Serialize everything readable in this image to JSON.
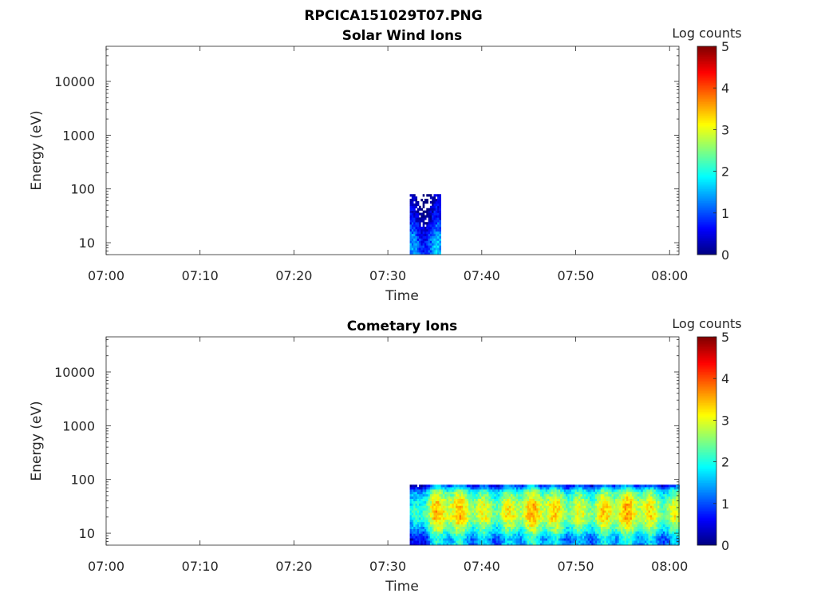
{
  "figure": {
    "title": "RPCICA151029T07.PNG"
  },
  "chart_data": [
    {
      "type": "heatmap",
      "title": "Solar Wind Ions",
      "xlabel": "Time",
      "ylabel": "Energy (eV)",
      "x_ticks": [
        "07:00",
        "07:10",
        "07:20",
        "07:30",
        "07:40",
        "07:50",
        "08:00"
      ],
      "x_range": [
        "07:00",
        "08:01"
      ],
      "y_scale": "log",
      "y_range": [
        6,
        45000
      ],
      "y_ticks": [
        10,
        100,
        1000,
        10000
      ],
      "y_tick_labels": [
        "10",
        "100",
        "1000",
        "10000"
      ],
      "colorbar": {
        "label": "Log counts",
        "range": [
          0,
          5
        ],
        "ticks": [
          "0",
          "1",
          "2",
          "3",
          "4",
          "5"
        ],
        "colormap": "jet"
      },
      "data_extent": {
        "time": [
          "07:32:20",
          "07:35:30"
        ],
        "energy_eV": [
          6,
          80
        ]
      },
      "profile": [
        {
          "energy_eV": 8,
          "log_counts": 1.3
        },
        {
          "energy_eV": 15,
          "log_counts": 1.1
        },
        {
          "energy_eV": 25,
          "log_counts": 0.6
        },
        {
          "energy_eV": 50,
          "log_counts": 0.2
        },
        {
          "energy_eV": 80,
          "log_counts": 0.1
        }
      ]
    },
    {
      "type": "heatmap",
      "title": "Cometary Ions",
      "xlabel": "Time",
      "ylabel": "Energy (eV)",
      "x_ticks": [
        "07:00",
        "07:10",
        "07:20",
        "07:30",
        "07:40",
        "07:50",
        "08:00"
      ],
      "x_range": [
        "07:00",
        "08:01"
      ],
      "y_scale": "log",
      "y_range": [
        6,
        45000
      ],
      "y_ticks": [
        10,
        100,
        1000,
        10000
      ],
      "y_tick_labels": [
        "10",
        "100",
        "1000",
        "10000"
      ],
      "colorbar": {
        "label": "Log counts",
        "range": [
          0,
          5
        ],
        "ticks": [
          "0",
          "1",
          "2",
          "3",
          "4",
          "5"
        ],
        "colormap": "jet"
      },
      "data_extent": {
        "time": [
          "07:32:20",
          "08:01:00"
        ],
        "energy_eV": [
          6,
          80
        ]
      },
      "profile": [
        {
          "energy_eV": 8,
          "log_counts": 1.5
        },
        {
          "energy_eV": 12,
          "log_counts": 2.3
        },
        {
          "energy_eV": 20,
          "log_counts": 3.0
        },
        {
          "energy_eV": 35,
          "log_counts": 2.9
        },
        {
          "energy_eV": 60,
          "log_counts": 2.2
        },
        {
          "energy_eV": 80,
          "log_counts": 0.8
        }
      ]
    }
  ]
}
